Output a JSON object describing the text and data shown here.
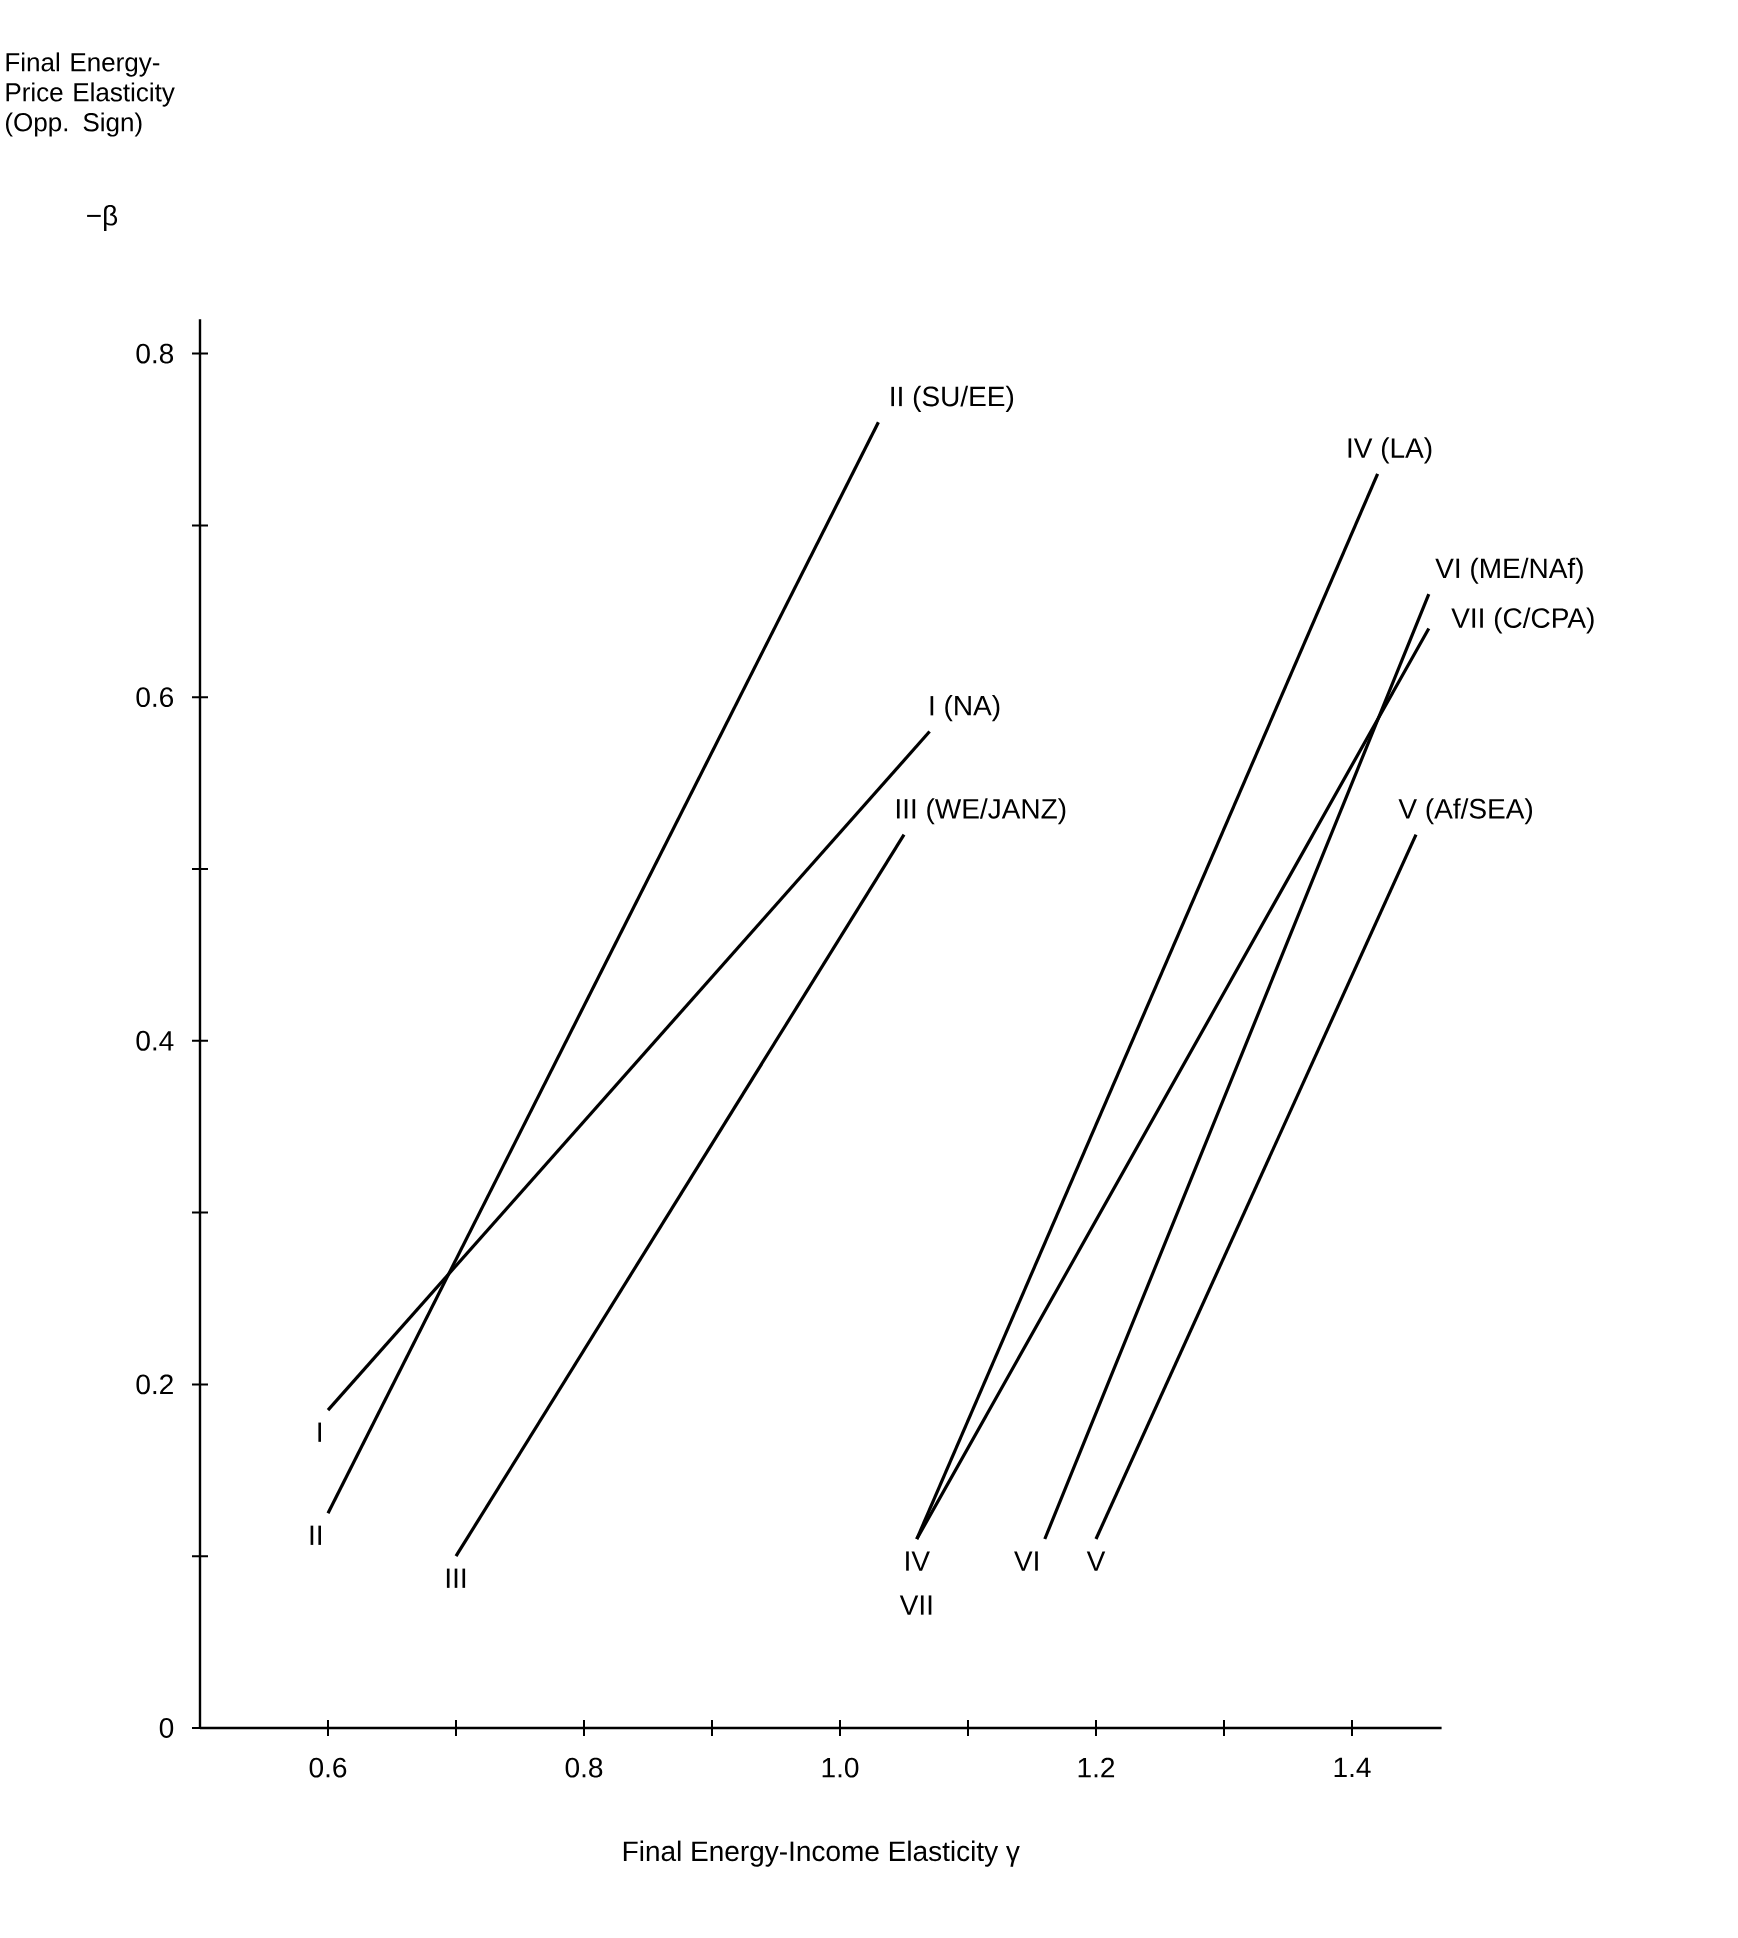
{
  "chart_data": {
    "type": "line",
    "xlabel": "Final Energy-Income Elasticity γ",
    "xlim": [
      0.5,
      1.47
    ],
    "ylim": [
      0,
      0.82
    ],
    "xticks": [
      0.6,
      {
        "value": 0.7,
        "label": null
      },
      0.8,
      {
        "value": 0.9,
        "label": null
      },
      "1.0",
      {
        "value": 1.1,
        "label": null
      },
      1.2,
      {
        "value": 1.3,
        "label": null
      },
      1.4
    ],
    "yticks": [
      0,
      {
        "value": 0.1,
        "label": null
      },
      0.2,
      {
        "value": 0.3,
        "label": null
      },
      0.4,
      {
        "value": 0.5,
        "label": null
      },
      0.6,
      {
        "value": 0.7,
        "label": null
      },
      0.8
    ],
    "marker": "none",
    "line_style": "solid",
    "series": [
      {
        "name": "I (NA)",
        "color": "#000000",
        "x": [
          0.6,
          1.07
        ],
        "values": [
          0.185,
          0.58
        ]
      },
      {
        "name": "II (SU/EE)",
        "color": "#000000",
        "x": [
          0.6,
          1.03
        ],
        "values": [
          0.125,
          0.76
        ]
      },
      {
        "name": "III (WE/JANZ)",
        "color": "#000000",
        "x": [
          0.7,
          1.05
        ],
        "values": [
          0.1,
          0.52
        ]
      },
      {
        "name": "IV (LA)",
        "color": "#000000",
        "x": [
          1.06,
          1.42
        ],
        "values": [
          0.11,
          0.73
        ]
      },
      {
        "name": "V (Af/SEA)",
        "color": "#000000",
        "x": [
          1.2,
          1.45
        ],
        "values": [
          0.11,
          0.52
        ]
      },
      {
        "name": "VI (ME/NAf)",
        "color": "#000000",
        "x": [
          1.16,
          1.46
        ],
        "values": [
          0.11,
          0.66
        ]
      },
      {
        "name": "VII (C/CPA)",
        "color": "#000000",
        "x": [
          1.06,
          1.46
        ],
        "values": [
          0.11,
          0.64
        ]
      }
    ],
    "annotations": [
      {
        "text": "I",
        "x": 0.6,
        "y": 0.185
      },
      {
        "text": "II",
        "x": 0.6,
        "y": 0.125
      },
      {
        "text": "III",
        "x": 0.7,
        "y": 0.1
      },
      {
        "text": "IV",
        "x": 1.06,
        "y": 0.11
      },
      {
        "text": "VII",
        "x": 1.06,
        "y": 0.11
      },
      {
        "text": "VI",
        "x": 1.16,
        "y": 0.11
      },
      {
        "text": "V",
        "x": 1.2,
        "y": 0.11
      },
      "Final Energy-Price Elasticity (Opp. Sign)",
      "−β"
    ]
  }
}
